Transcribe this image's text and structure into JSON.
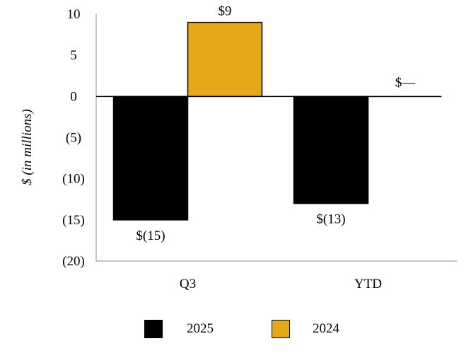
{
  "chart_data": {
    "type": "bar",
    "categories": [
      "Q3",
      "YTD"
    ],
    "series": [
      {
        "name": "2025",
        "values": [
          -15,
          -13
        ],
        "labels": [
          "$(15)",
          "$(13)"
        ],
        "color": "#000000"
      },
      {
        "name": "2024",
        "values": [
          9,
          0
        ],
        "labels": [
          "$9",
          "$—"
        ],
        "color": "#E5A819"
      }
    ],
    "ylabel": "$ (in millions)",
    "ylim": [
      -20,
      10
    ],
    "yticks": [
      10,
      5,
      0,
      -5,
      -10,
      -15,
      -20
    ],
    "ytick_labels": [
      "10",
      "5",
      "0",
      "(5)",
      "(10)",
      "(15)",
      "(20)"
    ],
    "legend_position": "bottom",
    "grid": false
  }
}
